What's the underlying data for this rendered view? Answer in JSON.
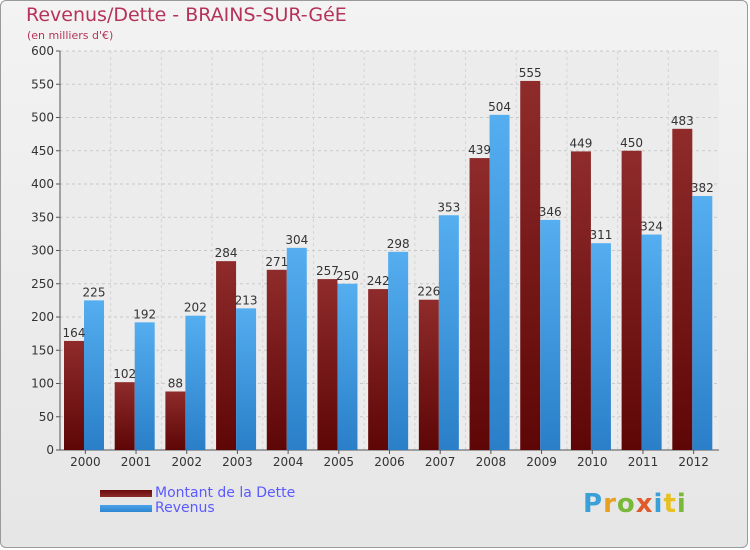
{
  "header": {
    "title": "Revenus/Dette - BRAINS-SUR-GéE",
    "subtitle": "(en milliers d'€)"
  },
  "legend": {
    "debt_label": "Montant de la Dette",
    "revenue_label": "Revenus"
  },
  "logo": {
    "letters": [
      "P",
      "r",
      "o",
      "x",
      "i",
      "t",
      "i"
    ]
  },
  "colors": {
    "debt": "#7a1515",
    "revenue": "#3d97e0",
    "title": "#b5335a",
    "legend_text": "#5a5aff"
  },
  "chart_data": {
    "type": "bar",
    "title": "Revenus/Dette - BRAINS-SUR-GéE",
    "subtitle": "(en milliers d'€)",
    "categories": [
      "2000",
      "2001",
      "2002",
      "2003",
      "2004",
      "2005",
      "2006",
      "2007",
      "2008",
      "2009",
      "2010",
      "2011",
      "2012"
    ],
    "series": [
      {
        "name": "Montant de la Dette",
        "values": [
          164,
          102,
          88,
          284,
          271,
          257,
          242,
          226,
          439,
          555,
          449,
          450,
          483
        ]
      },
      {
        "name": "Revenus",
        "values": [
          225,
          192,
          202,
          213,
          304,
          250,
          298,
          353,
          504,
          346,
          311,
          324,
          382
        ]
      }
    ],
    "ylim": [
      0,
      600
    ],
    "yticks": [
      0,
      50,
      100,
      150,
      200,
      250,
      300,
      350,
      400,
      450,
      500,
      550,
      600
    ],
    "grid": true,
    "legend_position": "bottom-left"
  }
}
